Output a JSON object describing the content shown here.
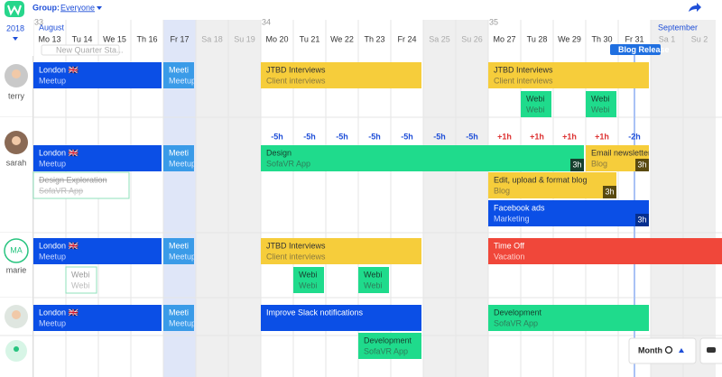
{
  "header": {
    "group_label": "Group:",
    "group_value": "Everyone",
    "year": "2018",
    "month_start": "August",
    "month_end": "September",
    "weeks": [
      "33",
      "34",
      "35"
    ],
    "view": "Month"
  },
  "days": [
    "Mo 13",
    "Tu 14",
    "We 15",
    "Th 16",
    "Fr 17",
    "Sa 18",
    "Su 19",
    "Mo 20",
    "Tu 21",
    "We 22",
    "Th 23",
    "Fr 24",
    "Sa 25",
    "Su 26",
    "Mo 27",
    "Tu 28",
    "We 29",
    "Th 30",
    "Fr 31",
    "Sa 1",
    "Su 2"
  ],
  "milestones": [
    "New Quarter Sta...",
    "Blog Release"
  ],
  "people": [
    {
      "name": "terry",
      "events": [
        {
          "label": "London 🇬🇧",
          "sub": "Meetup"
        },
        {
          "label": "Meeti",
          "sub": "Meetup"
        },
        {
          "label": "JTBD Interviews",
          "sub": "Client interviews"
        },
        {
          "label": "JTBD Interviews",
          "sub": "Client interviews"
        },
        {
          "label": "Webi",
          "sub": "Webi"
        },
        {
          "label": "Webi",
          "sub": "Webi"
        }
      ]
    },
    {
      "name": "sarah",
      "timezones": [
        "-5h",
        "-5h",
        "-5h",
        "-5h",
        "-5h",
        "-5h",
        "-5h",
        "+1h",
        "+1h",
        "+1h",
        "+1h",
        "-2h"
      ],
      "events": [
        {
          "label": "London 🇬🇧",
          "sub": "Meetup"
        },
        {
          "label": "Meeti",
          "sub": "Meetup"
        },
        {
          "label": "Design",
          "sub": "SofaVR App",
          "badge": "3h"
        },
        {
          "label": "Email newsletter",
          "sub": "Blog",
          "badge": "3h"
        },
        {
          "label": "Design Exploration",
          "sub": "SofaVR App"
        },
        {
          "label": "Edit, upload & format blog",
          "sub": "Blog",
          "badge": "3h"
        },
        {
          "label": "Facebook ads",
          "sub": "Marketing",
          "badge": "3h"
        }
      ]
    },
    {
      "name": "marie",
      "initials": "MA",
      "events": [
        {
          "label": "London 🇬🇧",
          "sub": "Meetup"
        },
        {
          "label": "Meeti",
          "sub": "Meetup"
        },
        {
          "label": "JTBD Interviews",
          "sub": "Client interviews"
        },
        {
          "label": "Time Off",
          "sub": "Vacation"
        },
        {
          "label": "Webi",
          "sub": "Webi"
        },
        {
          "label": "Webi",
          "sub": "Webi"
        },
        {
          "label": "Webi",
          "sub": "Webi"
        }
      ]
    },
    {
      "events": [
        {
          "label": "London 🇬🇧",
          "sub": "Meetup"
        },
        {
          "label": "Meeti",
          "sub": "Meetup"
        },
        {
          "label": "Improve Slack notifications",
          "sub": ""
        },
        {
          "label": "Development",
          "sub": "SofaVR App"
        },
        {
          "label": "Development",
          "sub": "SofaVR App"
        }
      ]
    }
  ]
}
